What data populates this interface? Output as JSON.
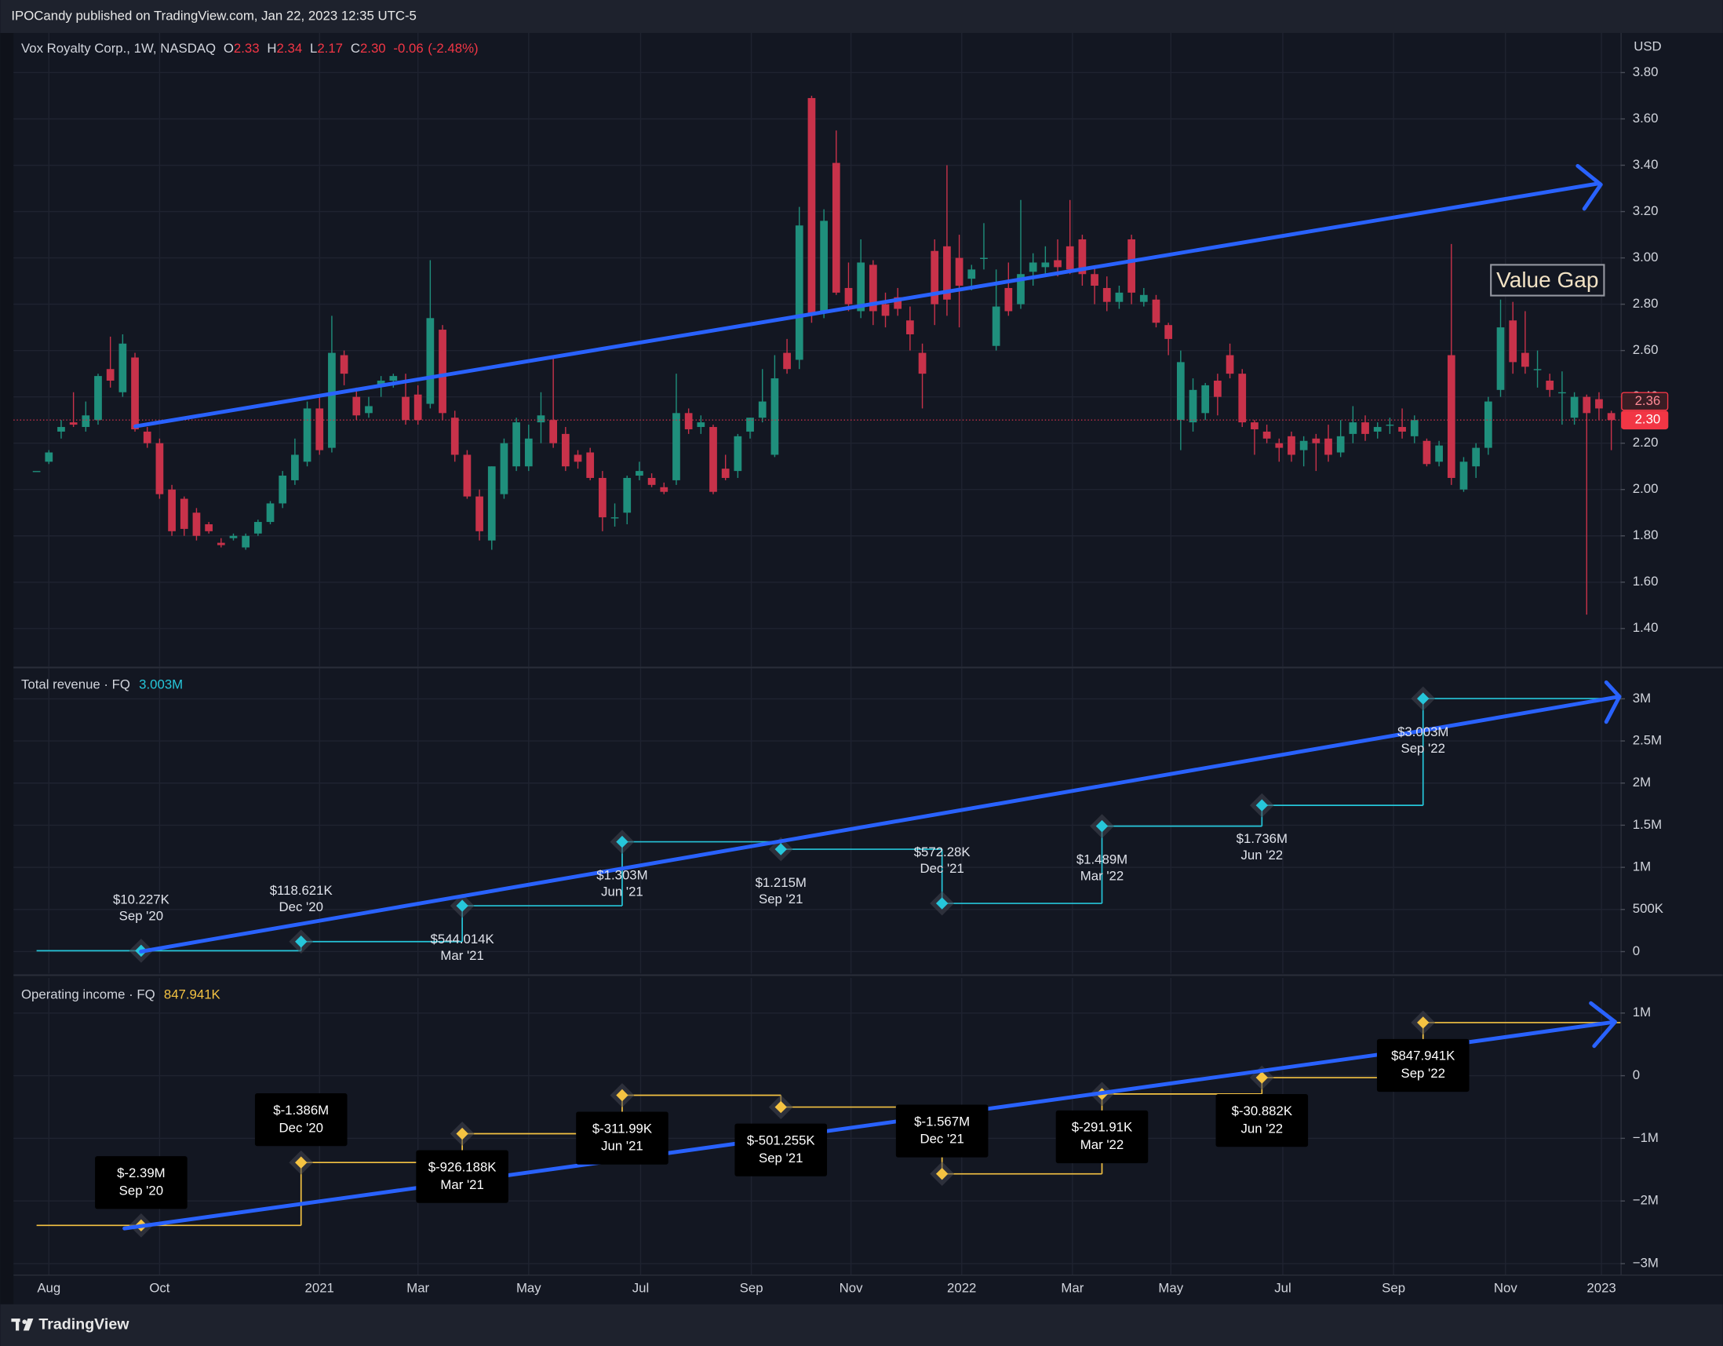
{
  "header": "IPOCandy published on TradingView.com, Jan 22, 2023 12:35 UTC-5",
  "footer": "TradingView",
  "chart_data": [
    {
      "type": "candlestick",
      "legend": {
        "name": "Vox Royalty Corp., 1W, NASDAQ",
        "ohlc": [
          {
            "key": "O",
            "value": 2.33,
            "label": "2.33"
          },
          {
            "key": "H",
            "value": 2.34,
            "label": "2.34"
          },
          {
            "key": "L",
            "value": 2.17,
            "label": "2.17"
          },
          {
            "key": "C",
            "value": 2.3,
            "label": "2.30"
          }
        ],
        "change": {
          "value": -0.06,
          "label": "-0.06"
        },
        "change_pct": {
          "value": -2.48,
          "label": "(-2.48%)"
        }
      },
      "currency": "USD",
      "annotation": "Value Gap",
      "up_color": "#1f8f7c",
      "down_color": "#c8324a",
      "categories": [
        null,
        null,
        null,
        null,
        null,
        null,
        null,
        null,
        null,
        null,
        null,
        null,
        null,
        null,
        null,
        null,
        null,
        null,
        null,
        null,
        null,
        null,
        null,
        null,
        null,
        null,
        null,
        null,
        null,
        null,
        null,
        null,
        null,
        null,
        null,
        null,
        null,
        null,
        null,
        null,
        null,
        null,
        null,
        null,
        null,
        null,
        null,
        null,
        null,
        null,
        null,
        null,
        null,
        null,
        null,
        null,
        null,
        null,
        null,
        null,
        null,
        null,
        null,
        null,
        null,
        null,
        null,
        null,
        null,
        null,
        null,
        null,
        null,
        null,
        null,
        null,
        null,
        null,
        null,
        null,
        null,
        null,
        null,
        null,
        null,
        null,
        null,
        null,
        null,
        null,
        null,
        null,
        null,
        null,
        null,
        null,
        null,
        null,
        null,
        null,
        null,
        null,
        null,
        null,
        null,
        null,
        null,
        null,
        null,
        null,
        null,
        null,
        null,
        null,
        null,
        null,
        null,
        null,
        null,
        null,
        null,
        null,
        null,
        null,
        null,
        null,
        null,
        null,
        null
      ],
      "open": [
        2.08,
        2.12,
        2.25,
        2.29,
        2.27,
        2.3,
        2.52,
        2.42,
        2.57,
        2.25,
        2.2,
        2.0,
        1.96,
        1.9,
        1.85,
        1.77,
        1.79,
        1.75,
        1.81,
        1.86,
        1.94,
        2.04,
        2.12,
        2.35,
        2.18,
        2.58,
        2.4,
        2.33,
        2.45,
        2.47,
        2.4,
        2.41,
        2.37,
        2.69,
        2.31,
        2.15,
        1.97,
        1.78,
        1.98,
        2.1,
        2.1,
        2.29,
        2.3,
        2.24,
        2.15,
        2.16,
        2.05,
        1.88,
        1.9,
        2.06,
        2.05,
        2.01,
        2.04,
        2.33,
        2.27,
        2.27,
        2.09,
        2.08,
        2.25,
        2.31,
        2.15,
        2.59,
        2.56,
        3.69,
        2.77,
        3.41,
        2.87,
        2.77,
        2.97,
        2.8,
        2.83,
        2.73,
        2.59,
        3.03,
        3.05,
        3.0,
        2.91,
        3.0,
        2.62,
        2.87,
        2.8,
        2.94,
        2.96,
        2.99,
        3.05,
        3.08,
        2.93,
        2.87,
        2.81,
        3.08,
        2.81,
        2.82,
        2.71,
        2.3,
        2.29,
        2.33,
        2.47,
        2.58,
        2.5,
        2.29,
        2.25,
        2.2,
        2.23,
        2.17,
        2.22,
        2.22,
        2.16,
        2.24,
        2.29,
        2.25,
        2.28,
        2.27,
        2.23,
        2.21,
        2.12,
        2.58,
        2.0,
        2.1,
        2.18,
        2.43,
        2.73,
        2.59,
        2.52,
        2.47,
        2.42,
        2.31,
        2.4,
        2.39,
        2.33
      ],
      "high": [
        2.08,
        2.17,
        2.3,
        2.42,
        2.38,
        2.5,
        2.66,
        2.67,
        2.59,
        2.27,
        2.22,
        2.02,
        1.97,
        1.92,
        1.86,
        1.79,
        1.81,
        1.81,
        1.87,
        1.95,
        2.08,
        2.22,
        2.38,
        2.4,
        2.75,
        2.6,
        2.44,
        2.4,
        2.49,
        2.5,
        2.5,
        2.45,
        2.99,
        2.71,
        2.34,
        2.17,
        2.0,
        2.1,
        2.22,
        2.31,
        2.28,
        2.42,
        2.58,
        2.27,
        2.17,
        2.18,
        2.08,
        1.94,
        2.06,
        2.12,
        2.07,
        2.03,
        2.5,
        2.35,
        2.32,
        2.28,
        2.15,
        2.24,
        2.31,
        2.52,
        2.58,
        2.65,
        3.22,
        3.7,
        3.21,
        3.55,
        2.98,
        3.08,
        2.99,
        2.85,
        2.87,
        2.79,
        2.63,
        3.08,
        3.4,
        3.1,
        2.97,
        3.15,
        2.95,
        2.98,
        3.25,
        3.02,
        3.05,
        3.08,
        3.25,
        3.1,
        2.96,
        2.92,
        2.88,
        3.1,
        2.87,
        2.84,
        2.72,
        2.6,
        2.48,
        2.46,
        2.5,
        2.63,
        2.52,
        2.3,
        2.28,
        2.22,
        2.25,
        2.23,
        2.24,
        2.28,
        2.3,
        2.36,
        2.32,
        2.29,
        2.31,
        2.35,
        2.32,
        2.22,
        2.21,
        3.06,
        2.14,
        2.2,
        2.4,
        2.82,
        2.81,
        2.77,
        2.6,
        2.5,
        2.51,
        2.42,
        2.41,
        2.42,
        2.34
      ],
      "low": [
        2.08,
        2.11,
        2.22,
        2.27,
        2.25,
        2.28,
        2.44,
        2.4,
        2.25,
        2.18,
        1.96,
        1.8,
        1.8,
        1.78,
        1.81,
        1.75,
        1.78,
        1.74,
        1.8,
        1.85,
        1.92,
        2.02,
        2.1,
        2.15,
        2.16,
        2.45,
        2.3,
        2.31,
        2.4,
        2.44,
        2.28,
        2.28,
        2.35,
        2.3,
        2.12,
        1.96,
        1.78,
        1.74,
        1.96,
        2.08,
        2.08,
        2.2,
        2.18,
        2.08,
        2.09,
        2.04,
        1.82,
        1.84,
        1.85,
        2.04,
        2.01,
        1.98,
        2.02,
        2.24,
        2.24,
        1.98,
        2.04,
        2.05,
        2.22,
        2.29,
        2.14,
        2.5,
        2.52,
        2.72,
        2.74,
        2.84,
        2.77,
        2.74,
        2.71,
        2.7,
        2.75,
        2.6,
        2.35,
        2.71,
        2.75,
        2.7,
        2.86,
        2.95,
        2.6,
        2.75,
        2.78,
        2.88,
        2.92,
        2.92,
        2.93,
        2.88,
        2.8,
        2.77,
        2.78,
        2.8,
        2.79,
        2.7,
        2.58,
        2.17,
        2.25,
        2.3,
        2.32,
        2.48,
        2.27,
        2.15,
        2.2,
        2.12,
        2.12,
        2.1,
        2.08,
        2.12,
        2.14,
        2.2,
        2.21,
        2.22,
        2.24,
        2.22,
        2.2,
        2.1,
        2.1,
        2.02,
        1.99,
        2.05,
        2.15,
        2.4,
        2.5,
        2.5,
        2.44,
        2.4,
        2.28,
        2.28,
        1.46,
        2.3,
        2.17
      ],
      "close": [
        2.08,
        2.16,
        2.27,
        2.28,
        2.32,
        2.49,
        2.47,
        2.63,
        2.26,
        2.2,
        1.98,
        1.82,
        1.83,
        1.8,
        1.82,
        1.76,
        1.8,
        1.8,
        1.86,
        1.94,
        2.06,
        2.15,
        2.35,
        2.17,
        2.59,
        2.5,
        2.32,
        2.36,
        2.47,
        2.49,
        2.3,
        2.3,
        2.74,
        2.33,
        2.15,
        1.97,
        1.82,
        2.1,
        2.2,
        2.29,
        2.22,
        2.32,
        2.2,
        2.1,
        2.12,
        2.05,
        1.88,
        1.88,
        2.05,
        2.08,
        2.02,
        1.99,
        2.33,
        2.26,
        2.29,
        1.99,
        2.05,
        2.23,
        2.31,
        2.38,
        2.48,
        2.52,
        3.14,
        2.76,
        3.16,
        2.85,
        2.8,
        2.98,
        2.77,
        2.75,
        2.78,
        2.67,
        2.5,
        2.8,
        2.82,
        2.88,
        2.95,
        3.0,
        2.79,
        2.77,
        2.93,
        2.98,
        2.98,
        2.96,
        2.95,
        2.93,
        2.88,
        2.81,
        2.85,
        2.85,
        2.84,
        2.72,
        2.65,
        2.55,
        2.43,
        2.45,
        2.4,
        2.5,
        2.29,
        2.26,
        2.22,
        2.18,
        2.15,
        2.21,
        2.2,
        2.15,
        2.23,
        2.29,
        2.24,
        2.27,
        2.28,
        2.25,
        2.3,
        2.11,
        2.19,
        2.05,
        2.12,
        2.18,
        2.38,
        2.7,
        2.55,
        2.53,
        2.52,
        2.43,
        2.42,
        2.4,
        2.33,
        2.35,
        2.3
      ],
      "price_labels": [
        {
          "value": 2.36,
          "label": "2.36"
        },
        {
          "value": 2.3,
          "label": "2.30"
        }
      ],
      "xlim": [
        -1.875,
        128.75
      ],
      "ylim": [
        1.234,
        3.971
      ],
      "yticks": [
        {
          "value": 1.4,
          "label": "1.40"
        },
        {
          "value": 1.6,
          "label": "1.60"
        },
        {
          "value": 1.8,
          "label": "1.80"
        },
        {
          "value": 2,
          "label": "2.00"
        },
        {
          "value": 2.2,
          "label": "2.20"
        },
        {
          "value": 2.4,
          "label": "2.40"
        },
        {
          "value": 2.6,
          "label": "2.60"
        },
        {
          "value": 2.8,
          "label": "2.80"
        },
        {
          "value": 3,
          "label": "3.00"
        },
        {
          "value": 3.2,
          "label": "3.20"
        },
        {
          "value": 3.4,
          "label": "3.40"
        },
        {
          "value": 3.6,
          "label": "3.60"
        },
        {
          "value": 3.8,
          "label": "3.80"
        }
      ],
      "grid": true
    },
    {
      "type": "step",
      "title": "Total revenue · FQ",
      "legend_value": {
        "value": 3003000,
        "label": "3.003M"
      },
      "color": "#26c6da",
      "x": [
        8.5,
        21.5,
        34.6,
        47.6,
        60.5,
        73.6,
        86.6,
        99.6,
        112.7
      ],
      "values": [
        10227,
        118621,
        544014,
        1303000,
        1215000,
        572280,
        1489000,
        1736000,
        3003000
      ],
      "value_labels": [
        "$10.227K",
        "$118.621K",
        "$544.014K",
        "$1.303M",
        "$1.215M",
        "$572.28K",
        "$1.489M",
        "$1.736M",
        "$3.003M"
      ],
      "point_labels": [
        "Sep '20",
        "Dec '20",
        "Mar '21",
        "Jun '21",
        "Sep '21",
        "Dec '21",
        "Mar '22",
        "Jun '22",
        "Sep '22"
      ],
      "xlim": [
        -1.875,
        128.75
      ],
      "ylim": [
        -260000,
        3365000
      ],
      "yticks": [
        0,
        {
          "value": 500000,
          "label": "500K"
        },
        {
          "value": 1000000,
          "label": "1M"
        },
        {
          "value": 1500000,
          "label": "1.5M"
        },
        {
          "value": 2000000,
          "label": "2M"
        },
        {
          "value": 2500000,
          "label": "2.5M"
        },
        {
          "value": 3000000,
          "label": "3M"
        }
      ],
      "grid": true
    },
    {
      "type": "step",
      "title": "Operating income · FQ",
      "legend_value": {
        "value": 847941,
        "label": "847.941K"
      },
      "color": "#f5c342",
      "boxed_labels": true,
      "x": [
        8.5,
        21.5,
        34.6,
        47.6,
        60.5,
        73.6,
        86.6,
        99.6,
        112.7
      ],
      "values": [
        -2390000,
        -1386000,
        -926188,
        -311990,
        -501255,
        -1567000,
        -291910,
        -30882,
        847941
      ],
      "value_labels": [
        "$-2.39M",
        "$-1.386M",
        "$-926.188K",
        "$-311.99K",
        "$-501.255K",
        "$-1.567M",
        "$-291.91K",
        "$-30.882K",
        "$847.941K"
      ],
      "point_labels": [
        "Sep '20",
        "Dec '20",
        "Mar '21",
        "Jun '21",
        "Sep '21",
        "Dec '21",
        "Mar '22",
        "Jun '22",
        "Sep '22"
      ],
      "xlim": [
        -1.875,
        128.75
      ],
      "ylim": [
        -3175000,
        1561000
      ],
      "yticks": [
        {
          "value": 1000000,
          "label": "1M"
        },
        0,
        {
          "value": -1000000,
          "label": "−1M"
        },
        {
          "value": -2000000,
          "label": "−2M"
        },
        {
          "value": -3000000,
          "label": "−3M"
        }
      ],
      "xticks": [
        {
          "value": 1.0,
          "label": "Aug"
        },
        {
          "value": 10.0,
          "label": "Oct"
        },
        {
          "value": 23.0,
          "label": "2021"
        },
        {
          "value": 31.0,
          "label": "Mar"
        },
        {
          "value": 40.0,
          "label": "May"
        },
        {
          "value": 49.1,
          "label": "Jul"
        },
        {
          "value": 58.1,
          "label": "Sep"
        },
        {
          "value": 66.2,
          "label": "Nov"
        },
        {
          "value": 75.2,
          "label": "2022"
        },
        {
          "value": 84.2,
          "label": "Mar"
        },
        {
          "value": 92.2,
          "label": "May"
        },
        {
          "value": 101.3,
          "label": "Jul"
        },
        {
          "value": 110.3,
          "label": "Sep"
        },
        {
          "value": 119.4,
          "label": "Nov"
        },
        {
          "value": 127.2,
          "label": "2023"
        }
      ],
      "grid": true
    }
  ]
}
